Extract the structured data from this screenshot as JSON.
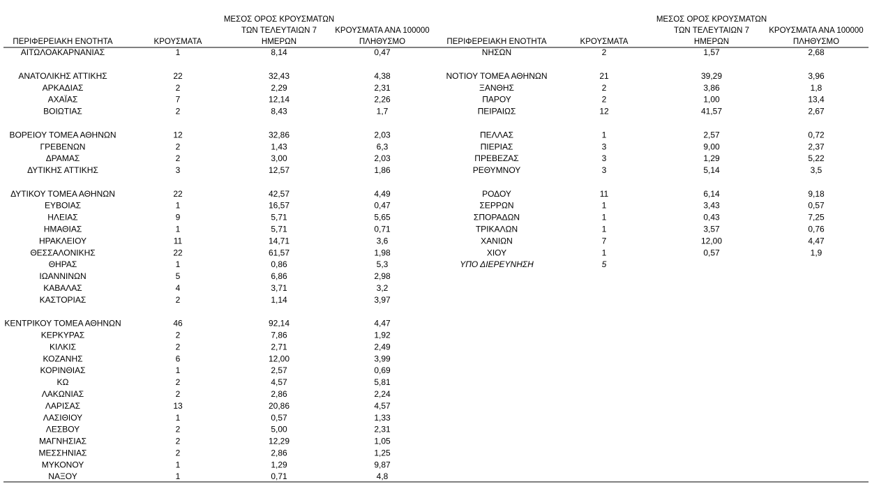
{
  "tables": [
    {
      "header": [
        [
          "ΠΕΡΙΦΕΡΕΙΑΚΗ ΕΝΟΤΗΤΑ"
        ],
        [
          "ΚΡΟΥΣΜΑΤΑ"
        ],
        [
          "ΜΕΣΟΣ ΟΡΟΣ ΚΡΟΥΣΜΑΤΩΝ",
          "ΤΩΝ ΤΕΛΕΥΤΑΙΩΝ 7",
          "ΗΜΕΡΩΝ"
        ],
        [
          "ΚΡΟΥΣΜΑΤΑ ΑΝΑ 100000",
          "ΠΛΗΘΥΣΜΟ"
        ]
      ],
      "groups": [
        [
          [
            "ΑΙΤΩΛΟΑΚΑΡΝΑΝΙΑΣ",
            "1",
            "8,14",
            "0,47"
          ]
        ],
        [
          [
            "ΑΝΑΤΟΛΙΚΗΣ ΑΤΤΙΚΗΣ",
            "22",
            "32,43",
            "4,38"
          ],
          [
            "ΑΡΚΑΔΙΑΣ",
            "2",
            "2,29",
            "2,31"
          ],
          [
            "ΑΧΑΪΑΣ",
            "7",
            "12,14",
            "2,26"
          ],
          [
            "ΒΟΙΩΤΙΑΣ",
            "2",
            "8,43",
            "1,7"
          ]
        ],
        [
          [
            "ΒΟΡΕΙΟΥ ΤΟΜΕΑ ΑΘΗΝΩΝ",
            "12",
            "32,86",
            "2,03"
          ],
          [
            "ΓΡΕΒΕΝΩΝ",
            "2",
            "1,43",
            "6,3"
          ],
          [
            "ΔΡΑΜΑΣ",
            "2",
            "3,00",
            "2,03"
          ],
          [
            "ΔΥΤΙΚΗΣ ΑΤΤΙΚΗΣ",
            "3",
            "12,57",
            "1,86"
          ]
        ],
        [
          [
            "ΔΥΤΙΚΟΥ ΤΟΜΕΑ ΑΘΗΝΩΝ",
            "22",
            "42,57",
            "4,49"
          ],
          [
            "ΕΥΒΟΙΑΣ",
            "1",
            "16,57",
            "0,47"
          ],
          [
            "ΗΛΕΙΑΣ",
            "9",
            "5,71",
            "5,65"
          ],
          [
            "ΗΜΑΘΙΑΣ",
            "1",
            "5,71",
            "0,71"
          ],
          [
            "ΗΡΑΚΛΕΙΟΥ",
            "11",
            "14,71",
            "3,6"
          ],
          [
            "ΘΕΣΣΑΛΟΝΙΚΗΣ",
            "22",
            "61,57",
            "1,98"
          ],
          [
            "ΘΗΡΑΣ",
            "1",
            "0,86",
            "5,3"
          ],
          [
            "ΙΩΑΝΝΙΝΩΝ",
            "5",
            "6,86",
            "2,98"
          ],
          [
            "ΚΑΒΑΛΑΣ",
            "4",
            "3,71",
            "3,2"
          ],
          [
            "ΚΑΣΤΟΡΙΑΣ",
            "2",
            "1,14",
            "3,97"
          ]
        ],
        [
          [
            "ΚΕΝΤΡΙΚΟΥ ΤΟΜΕΑ ΑΘΗΝΩΝ",
            "46",
            "92,14",
            "4,47"
          ],
          [
            "ΚΕΡΚΥΡΑΣ",
            "2",
            "7,86",
            "1,92"
          ],
          [
            "ΚΙΛΚΙΣ",
            "2",
            "2,71",
            "2,49"
          ],
          [
            "ΚΟΖΑΝΗΣ",
            "6",
            "12,00",
            "3,99"
          ],
          [
            "ΚΟΡΙΝΘΙΑΣ",
            "1",
            "2,57",
            "0,69"
          ],
          [
            "ΚΩ",
            "2",
            "4,57",
            "5,81"
          ],
          [
            "ΛΑΚΩΝΙΑΣ",
            "2",
            "2,86",
            "2,24"
          ],
          [
            "ΛΑΡΙΣΑΣ",
            "13",
            "20,86",
            "4,57"
          ],
          [
            "ΛΑΣΙΘΙΟΥ",
            "1",
            "0,57",
            "1,33"
          ],
          [
            "ΛΕΣΒΟΥ",
            "2",
            "5,00",
            "2,31"
          ],
          [
            "ΜΑΓΝΗΣΙΑΣ",
            "2",
            "12,29",
            "1,05"
          ],
          [
            "ΜΕΣΣΗΝΙΑΣ",
            "2",
            "2,86",
            "1,25"
          ],
          [
            "ΜΥΚΟΝΟΥ",
            "1",
            "1,29",
            "9,87"
          ],
          [
            "ΝΑΞΟΥ",
            "1",
            "0,71",
            "4,8"
          ]
        ]
      ]
    },
    {
      "header": [
        [
          "ΠΕΡΙΦΕΡΕΙΑΚΗ ΕΝΟΤΗΤΑ"
        ],
        [
          "ΚΡΟΥΣΜΑΤΑ"
        ],
        [
          "ΜΕΣΟΣ ΟΡΟΣ ΚΡΟΥΣΜΑΤΩΝ",
          "ΤΩΝ ΤΕΛΕΥΤΑΙΩΝ 7",
          "ΗΜΕΡΩΝ"
        ],
        [
          "ΚΡΟΥΣΜΑΤΑ ΑΝΑ 100000",
          "ΠΛΗΘΥΣΜΟ"
        ]
      ],
      "groups": [
        [
          [
            "ΝΗΣΩΝ",
            "2",
            "1,57",
            "2,68"
          ]
        ],
        [
          [
            "ΝΟΤΙΟΥ ΤΟΜΕΑ ΑΘΗΝΩΝ",
            "21",
            "39,29",
            "3,96"
          ],
          [
            "ΞΑΝΘΗΣ",
            "2",
            "3,86",
            "1,8"
          ],
          [
            "ΠΑΡΟΥ",
            "2",
            "1,00",
            "13,4"
          ],
          [
            "ΠΕΙΡΑΙΩΣ",
            "12",
            "41,57",
            "2,67"
          ]
        ],
        [
          [
            "ΠΕΛΛΑΣ",
            "1",
            "2,57",
            "0,72"
          ],
          [
            "ΠΙΕΡΙΑΣ",
            "3",
            "9,00",
            "2,37"
          ],
          [
            "ΠΡΕΒΕΖΑΣ",
            "3",
            "1,29",
            "5,22"
          ],
          [
            "ΡΕΘΥΜΝΟΥ",
            "3",
            "5,14",
            "3,5"
          ]
        ],
        [
          [
            "ΡΟΔΟΥ",
            "11",
            "6,14",
            "9,18"
          ],
          [
            "ΣΕΡΡΩΝ",
            "1",
            "3,43",
            "0,57"
          ],
          [
            "ΣΠΟΡΑΔΩΝ",
            "1",
            "0,43",
            "7,25"
          ],
          [
            "ΤΡΙΚΑΛΩΝ",
            "1",
            "3,57",
            "0,76"
          ],
          [
            "ΧΑΝΙΩΝ",
            "7",
            "12,00",
            "4,47"
          ],
          [
            "ΧΙΟΥ",
            "1",
            "0,57",
            "1,9"
          ],
          [
            "ΥΠΟ ΔΙΕΡΕΥΝΗΣΗ",
            "5"
          ]
        ]
      ]
    }
  ]
}
